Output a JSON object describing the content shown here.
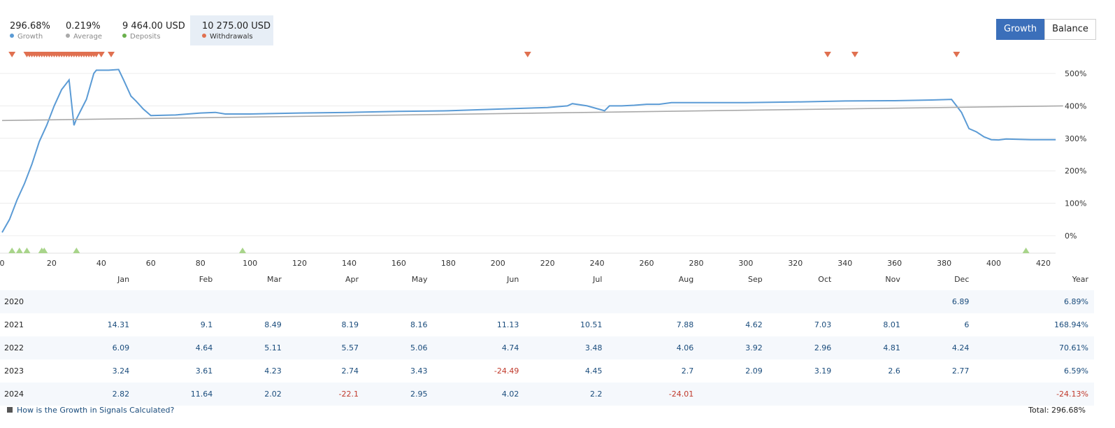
{
  "stats": [
    {
      "value": "296.68%",
      "label": "Growth",
      "color": "#5b9bd5"
    },
    {
      "value": "0.219%",
      "label": "Average",
      "color": "#a9a9a9"
    },
    {
      "value": "9 464.00 USD",
      "label": "Deposits",
      "color": "#6ab04c"
    },
    {
      "value": "10 275.00 USD",
      "label": "Withdrawals",
      "color": "#e07050"
    }
  ],
  "toggle": {
    "growth": "Growth",
    "balance": "Balance"
  },
  "chart_data": {
    "type": "line",
    "title": "",
    "xlabel": "",
    "ylabel": "",
    "xlim": [
      0,
      428
    ],
    "ylim": [
      -50,
      560
    ],
    "x_ticks": [
      0,
      20,
      40,
      60,
      80,
      100,
      120,
      140,
      160,
      180,
      200,
      220,
      240,
      260,
      280,
      300,
      320,
      340,
      360,
      380,
      400,
      420
    ],
    "y_ticks": [
      0,
      100,
      200,
      300,
      400,
      500
    ],
    "y_tick_labels": [
      "0%",
      "100%",
      "200%",
      "300%",
      "400%",
      "500%"
    ],
    "grid": "horizontal",
    "series": [
      {
        "name": "Growth",
        "color": "#5b9bd5",
        "x": [
          0,
          3,
          6,
          9,
          12,
          15,
          18,
          21,
          24,
          27,
          29,
          30,
          32,
          34,
          37,
          38,
          40,
          43,
          47,
          49,
          52,
          54,
          57,
          60,
          70,
          80,
          86,
          90,
          100,
          120,
          140,
          160,
          180,
          200,
          220,
          228,
          230,
          236,
          243,
          245,
          250,
          255,
          260,
          265,
          270,
          280,
          300,
          320,
          340,
          360,
          375,
          383,
          385,
          387,
          390,
          393,
          396,
          399,
          402,
          405,
          410,
          415,
          420,
          425
        ],
        "y": [
          10,
          50,
          110,
          160,
          220,
          290,
          340,
          400,
          450,
          480,
          340,
          360,
          390,
          420,
          500,
          510,
          510,
          510,
          512,
          480,
          430,
          415,
          390,
          370,
          372,
          378,
          380,
          375,
          375,
          378,
          380,
          383,
          385,
          390,
          395,
          400,
          407,
          400,
          385,
          400,
          400,
          402,
          405,
          405,
          410,
          410,
          410,
          412,
          415,
          416,
          418,
          420,
          400,
          380,
          330,
          320,
          305,
          296,
          295,
          298,
          297,
          296,
          296,
          296
        ]
      },
      {
        "name": "Average",
        "color": "#a9a9a9",
        "x": [
          0,
          428
        ],
        "y": [
          355,
          400
        ]
      }
    ],
    "deposits_x": [
      4,
      7,
      10,
      16,
      17,
      30,
      97,
      413
    ],
    "withdrawals_x": [
      4,
      10,
      11,
      12,
      13,
      14,
      15,
      16,
      17,
      18,
      19,
      20,
      21,
      22,
      23,
      24,
      25,
      26,
      27,
      28,
      29,
      30,
      31,
      32,
      33,
      34,
      35,
      36,
      37,
      38,
      40,
      44,
      212,
      333,
      344,
      385
    ]
  },
  "table": {
    "headers": [
      "Jan",
      "Feb",
      "Mar",
      "Apr",
      "May",
      "Jun",
      "Jul",
      "Aug",
      "Sep",
      "Oct",
      "Nov",
      "Dec",
      "Year"
    ],
    "rows": [
      {
        "year": "2020",
        "values": [
          "",
          "",
          "",
          "",
          "",
          "",
          "",
          "",
          "",
          "",
          "",
          "6.89",
          "6.89%"
        ]
      },
      {
        "year": "2021",
        "values": [
          "14.31",
          "9.1",
          "8.49",
          "8.19",
          "8.16",
          "11.13",
          "10.51",
          "7.88",
          "4.62",
          "7.03",
          "8.01",
          "6",
          "168.94%"
        ]
      },
      {
        "year": "2022",
        "values": [
          "6.09",
          "4.64",
          "5.11",
          "5.57",
          "5.06",
          "4.74",
          "3.48",
          "4.06",
          "3.92",
          "2.96",
          "4.81",
          "4.24",
          "70.61%"
        ]
      },
      {
        "year": "2023",
        "values": [
          "3.24",
          "3.61",
          "4.23",
          "2.74",
          "3.43",
          "-24.49",
          "4.45",
          "2.7",
          "2.09",
          "3.19",
          "2.6",
          "2.77",
          "6.59%"
        ]
      },
      {
        "year": "2024",
        "values": [
          "2.82",
          "11.64",
          "2.02",
          "-22.1",
          "2.95",
          "4.02",
          "2.2",
          "-24.01",
          "",
          "",
          "",
          "",
          "-24.13%"
        ]
      }
    ]
  },
  "footer": {
    "link": "How is the Growth in Signals Calculated?",
    "total": "Total: 296.68%"
  }
}
